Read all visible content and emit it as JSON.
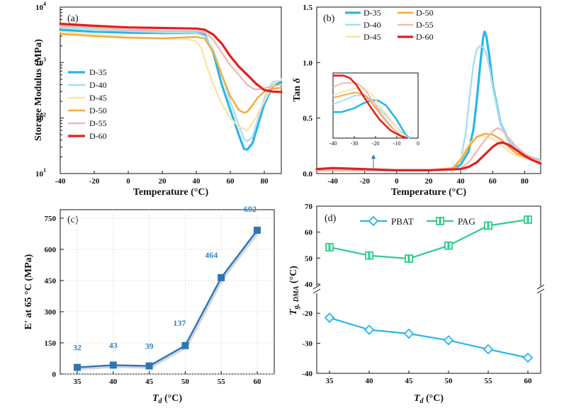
{
  "chart_data": [
    {
      "panel": "(a)",
      "type": "line",
      "xlabel": "Temperature (°C)",
      "ylabel": "Storage Modulus (MPa)",
      "xlim": [
        -40,
        90
      ],
      "ylim": [
        10,
        10000
      ],
      "yscale": "log",
      "xticks": [
        "-40",
        "-20",
        "0",
        "20",
        "40",
        "60",
        "80"
      ],
      "yticks": [
        {
          "value": 10,
          "base": "10",
          "exp": "1"
        },
        {
          "value": 100,
          "base": "10",
          "exp": "2"
        },
        {
          "value": 1000,
          "base": "10",
          "exp": "3"
        },
        {
          "value": 10000,
          "base": "10",
          "exp": "4"
        }
      ],
      "legend_position": "left-center",
      "series": [
        {
          "name": "D-35",
          "color": "#29b6e8",
          "width": 3.2,
          "x": [
            -40,
            -20,
            0,
            20,
            40,
            45,
            50,
            55,
            60,
            65,
            68,
            70,
            73,
            76,
            80,
            85,
            90
          ],
          "y": [
            3900,
            3600,
            3450,
            3400,
            3400,
            3200,
            1500,
            400,
            140,
            50,
            28,
            27,
            35,
            70,
            180,
            380,
            450
          ]
        },
        {
          "name": "D-40",
          "color": "#a6dff2",
          "width": 2.4,
          "x": [
            -40,
            -20,
            0,
            20,
            40,
            45,
            50,
            55,
            60,
            65,
            68,
            70,
            73,
            76,
            80,
            85,
            90
          ],
          "y": [
            4300,
            4000,
            3700,
            3500,
            3400,
            3000,
            1700,
            600,
            200,
            75,
            42,
            38,
            45,
            90,
            230,
            450,
            480
          ]
        },
        {
          "name": "D-45",
          "color": "#fde3a7",
          "width": 2.4,
          "x": [
            -40,
            -20,
            0,
            20,
            35,
            40,
            43,
            46,
            50,
            55,
            60,
            65,
            70,
            75,
            80,
            85,
            90
          ],
          "y": [
            3600,
            3200,
            2900,
            2700,
            2650,
            2400,
            1800,
            900,
            400,
            180,
            100,
            70,
            60,
            100,
            200,
            400,
            500
          ]
        },
        {
          "name": "D-50",
          "color": "#f6a83c",
          "width": 2.4,
          "x": [
            -40,
            -20,
            0,
            20,
            40,
            45,
            50,
            55,
            60,
            65,
            68,
            70,
            73,
            76,
            80,
            85,
            90
          ],
          "y": [
            3300,
            3000,
            2800,
            2750,
            2900,
            2700,
            1500,
            600,
            250,
            140,
            125,
            130,
            170,
            230,
            300,
            340,
            350
          ]
        },
        {
          "name": "D-55",
          "color": "#f3b8b4",
          "width": 2.4,
          "x": [
            -40,
            -20,
            0,
            20,
            40,
            45,
            50,
            55,
            60,
            65,
            70,
            74,
            78,
            82,
            86,
            90
          ],
          "y": [
            4600,
            4300,
            3900,
            3700,
            3700,
            3500,
            2600,
            1500,
            900,
            600,
            400,
            330,
            330,
            360,
            380,
            400
          ]
        },
        {
          "name": "D-60",
          "color": "#e0201b",
          "width": 3.2,
          "x": [
            -40,
            -20,
            0,
            20,
            40,
            45,
            50,
            55,
            60,
            65,
            70,
            75,
            80,
            85,
            90
          ],
          "y": [
            5000,
            4600,
            4300,
            4200,
            4100,
            3900,
            3200,
            2200,
            1300,
            850,
            600,
            420,
            320,
            300,
            295
          ]
        }
      ]
    },
    {
      "panel": "(b)",
      "type": "line",
      "xlabel": "Temperature (°C)",
      "ylabel_main": "Tan ",
      "ylabel_symbol": "δ",
      "xlim": [
        -50,
        90
      ],
      "ylim": [
        0,
        1.5
      ],
      "xticks": [
        "-40",
        "-20",
        "0",
        "20",
        "40",
        "60",
        "80"
      ],
      "yticks": [
        "0.0",
        "0.5",
        "1.0",
        "1.5"
      ],
      "legend_position": "top-left",
      "series": [
        {
          "name": "D-35",
          "color": "#29b6e8",
          "width": 3.2,
          "x": [
            -50,
            -20,
            20,
            35,
            40,
            45,
            48,
            50,
            52,
            54,
            55,
            56,
            58,
            60,
            65,
            70,
            75,
            80,
            85,
            90
          ],
          "y": [
            0.03,
            0.03,
            0.03,
            0.04,
            0.08,
            0.2,
            0.4,
            0.65,
            0.95,
            1.22,
            1.28,
            1.24,
            1.05,
            0.8,
            0.45,
            0.3,
            0.22,
            0.17,
            0.14,
            0.12
          ]
        },
        {
          "name": "D-40",
          "color": "#a6dff2",
          "width": 2.4,
          "x": [
            -50,
            -20,
            20,
            35,
            40,
            43,
            46,
            48,
            50,
            52,
            54,
            56,
            58,
            60,
            65,
            70,
            75,
            80,
            85,
            90
          ],
          "y": [
            0.03,
            0.03,
            0.03,
            0.04,
            0.12,
            0.35,
            0.75,
            0.98,
            1.12,
            1.15,
            1.14,
            1.08,
            0.95,
            0.78,
            0.45,
            0.3,
            0.22,
            0.17,
            0.14,
            0.12
          ]
        },
        {
          "name": "D-45",
          "color": "#fde3a7",
          "width": 2.4,
          "x": [
            -50,
            -20,
            20,
            35,
            40,
            45,
            50,
            55,
            60,
            65,
            70,
            75,
            80,
            85,
            90
          ],
          "y": [
            0.03,
            0.03,
            0.03,
            0.05,
            0.14,
            0.26,
            0.33,
            0.34,
            0.31,
            0.26,
            0.2,
            0.16,
            0.14,
            0.12,
            0.1
          ]
        },
        {
          "name": "D-50",
          "color": "#f6a83c",
          "width": 2.4,
          "x": [
            -50,
            -20,
            20,
            35,
            40,
            45,
            50,
            55,
            60,
            65,
            70,
            75,
            80,
            85,
            90
          ],
          "y": [
            0.03,
            0.03,
            0.03,
            0.05,
            0.12,
            0.24,
            0.33,
            0.36,
            0.35,
            0.31,
            0.24,
            0.18,
            0.15,
            0.12,
            0.1
          ]
        },
        {
          "name": "D-55",
          "color": "#f3b8b4",
          "width": 2.4,
          "x": [
            -50,
            -20,
            20,
            40,
            45,
            50,
            55,
            60,
            63,
            66,
            70,
            75,
            80,
            85,
            90
          ],
          "y": [
            0.03,
            0.03,
            0.03,
            0.05,
            0.1,
            0.2,
            0.3,
            0.38,
            0.41,
            0.39,
            0.32,
            0.24,
            0.18,
            0.14,
            0.11
          ]
        },
        {
          "name": "D-60",
          "color": "#e0201b",
          "width": 3.2,
          "x": [
            -50,
            -40,
            -20,
            0,
            20,
            40,
            45,
            50,
            55,
            60,
            63,
            66,
            70,
            75,
            80,
            85,
            90
          ],
          "y": [
            0.04,
            0.05,
            0.04,
            0.03,
            0.03,
            0.04,
            0.06,
            0.1,
            0.17,
            0.24,
            0.27,
            0.28,
            0.26,
            0.21,
            0.16,
            0.12,
            0.09
          ]
        }
      ],
      "inset": {
        "xlim": [
          -40,
          0
        ],
        "xticks": [
          "-40",
          "-30",
          "-20",
          "-10",
          "0"
        ],
        "series": [
          {
            "name": "D-35",
            "x": [
              -40,
              -36,
              -30,
              -26,
              -22,
              -19,
              -15,
              -10,
              -6,
              -4
            ],
            "y": [
              0.4,
              0.4,
              0.46,
              0.53,
              0.58,
              0.58,
              0.5,
              0.28,
              0.06,
              0.0
            ]
          },
          {
            "name": "D-40",
            "x": [
              -40,
              -35,
              -30,
              -27,
              -24,
              -20,
              -15,
              -10,
              -6,
              -4
            ],
            "y": [
              0.52,
              0.58,
              0.65,
              0.66,
              0.64,
              0.52,
              0.34,
              0.16,
              0.04,
              0.0
            ]
          },
          {
            "name": "D-45",
            "x": [
              -40,
              -35,
              -30,
              -26,
              -22,
              -18,
              -13,
              -8,
              -5
            ],
            "y": [
              0.66,
              0.72,
              0.76,
              0.76,
              0.68,
              0.5,
              0.28,
              0.08,
              0.0
            ]
          },
          {
            "name": "D-50",
            "x": [
              -40,
              -35,
              -30,
              -28,
              -25,
              -22,
              -18,
              -13,
              -8,
              -5
            ],
            "y": [
              0.62,
              0.66,
              0.7,
              0.69,
              0.66,
              0.55,
              0.38,
              0.18,
              0.04,
              0.0
            ]
          },
          {
            "name": "D-55",
            "x": [
              -40,
              -36,
              -32,
              -28,
              -25,
              -21,
              -17,
              -12,
              -8,
              -5
            ],
            "y": [
              0.78,
              0.84,
              0.85,
              0.83,
              0.74,
              0.56,
              0.36,
              0.16,
              0.04,
              0.0
            ]
          },
          {
            "name": "D-60",
            "x": [
              -40,
              -35,
              -32,
              -29,
              -26,
              -22,
              -18,
              -13,
              -8,
              -5
            ],
            "y": [
              0.96,
              0.96,
              0.92,
              0.82,
              0.66,
              0.46,
              0.28,
              0.12,
              0.03,
              0.0
            ]
          }
        ]
      }
    },
    {
      "panel": "(c)",
      "type": "line",
      "xlabel_main": "T",
      "xlabel_sub": "d",
      "xlabel_unit": " (°C)",
      "ylabel": "E' at 65 °C (MPa)",
      "categories": [
        "35",
        "40",
        "45",
        "50",
        "55",
        "60"
      ],
      "x": [
        35,
        40,
        45,
        50,
        55,
        60
      ],
      "values": [
        32,
        43,
        39,
        137,
        464,
        692
      ],
      "labels": [
        "32",
        "43",
        "39",
        "137",
        "464",
        "692"
      ],
      "ylim": [
        0,
        750
      ],
      "yticks": [
        "0",
        "150",
        "300",
        "450",
        "600",
        "750"
      ],
      "grid": true,
      "color": "#2e75b6"
    },
    {
      "panel": "(d)",
      "type": "line",
      "xlabel_main": "T",
      "xlabel_sub": "d",
      "xlabel_unit": " (°C)",
      "ylabel_main": "T",
      "ylabel_sub": "g, DMA",
      "ylabel_unit": " (°C)",
      "categories": [
        "35",
        "40",
        "45",
        "50",
        "55",
        "60"
      ],
      "x": [
        35,
        40,
        45,
        50,
        55,
        60
      ],
      "broken_axis": {
        "upper": [
          40,
          70
        ],
        "lower": [
          -40,
          -15
        ]
      },
      "yticks_upper": [
        "40",
        "50",
        "60",
        "70"
      ],
      "yticks_lower": [
        "-40",
        "-30",
        "-20"
      ],
      "legend_position": "top",
      "series": [
        {
          "name": "PBAT",
          "marker": "diamond",
          "color": "#29b6e8",
          "values": [
            -21.5,
            -25.5,
            -26.8,
            -29,
            -32,
            -34.8
          ]
        },
        {
          "name": "PAG",
          "marker": "square",
          "color": "#2ecc8a",
          "values": [
            54.2,
            51,
            49.8,
            54.8,
            62.5,
            64.8
          ]
        }
      ]
    }
  ]
}
